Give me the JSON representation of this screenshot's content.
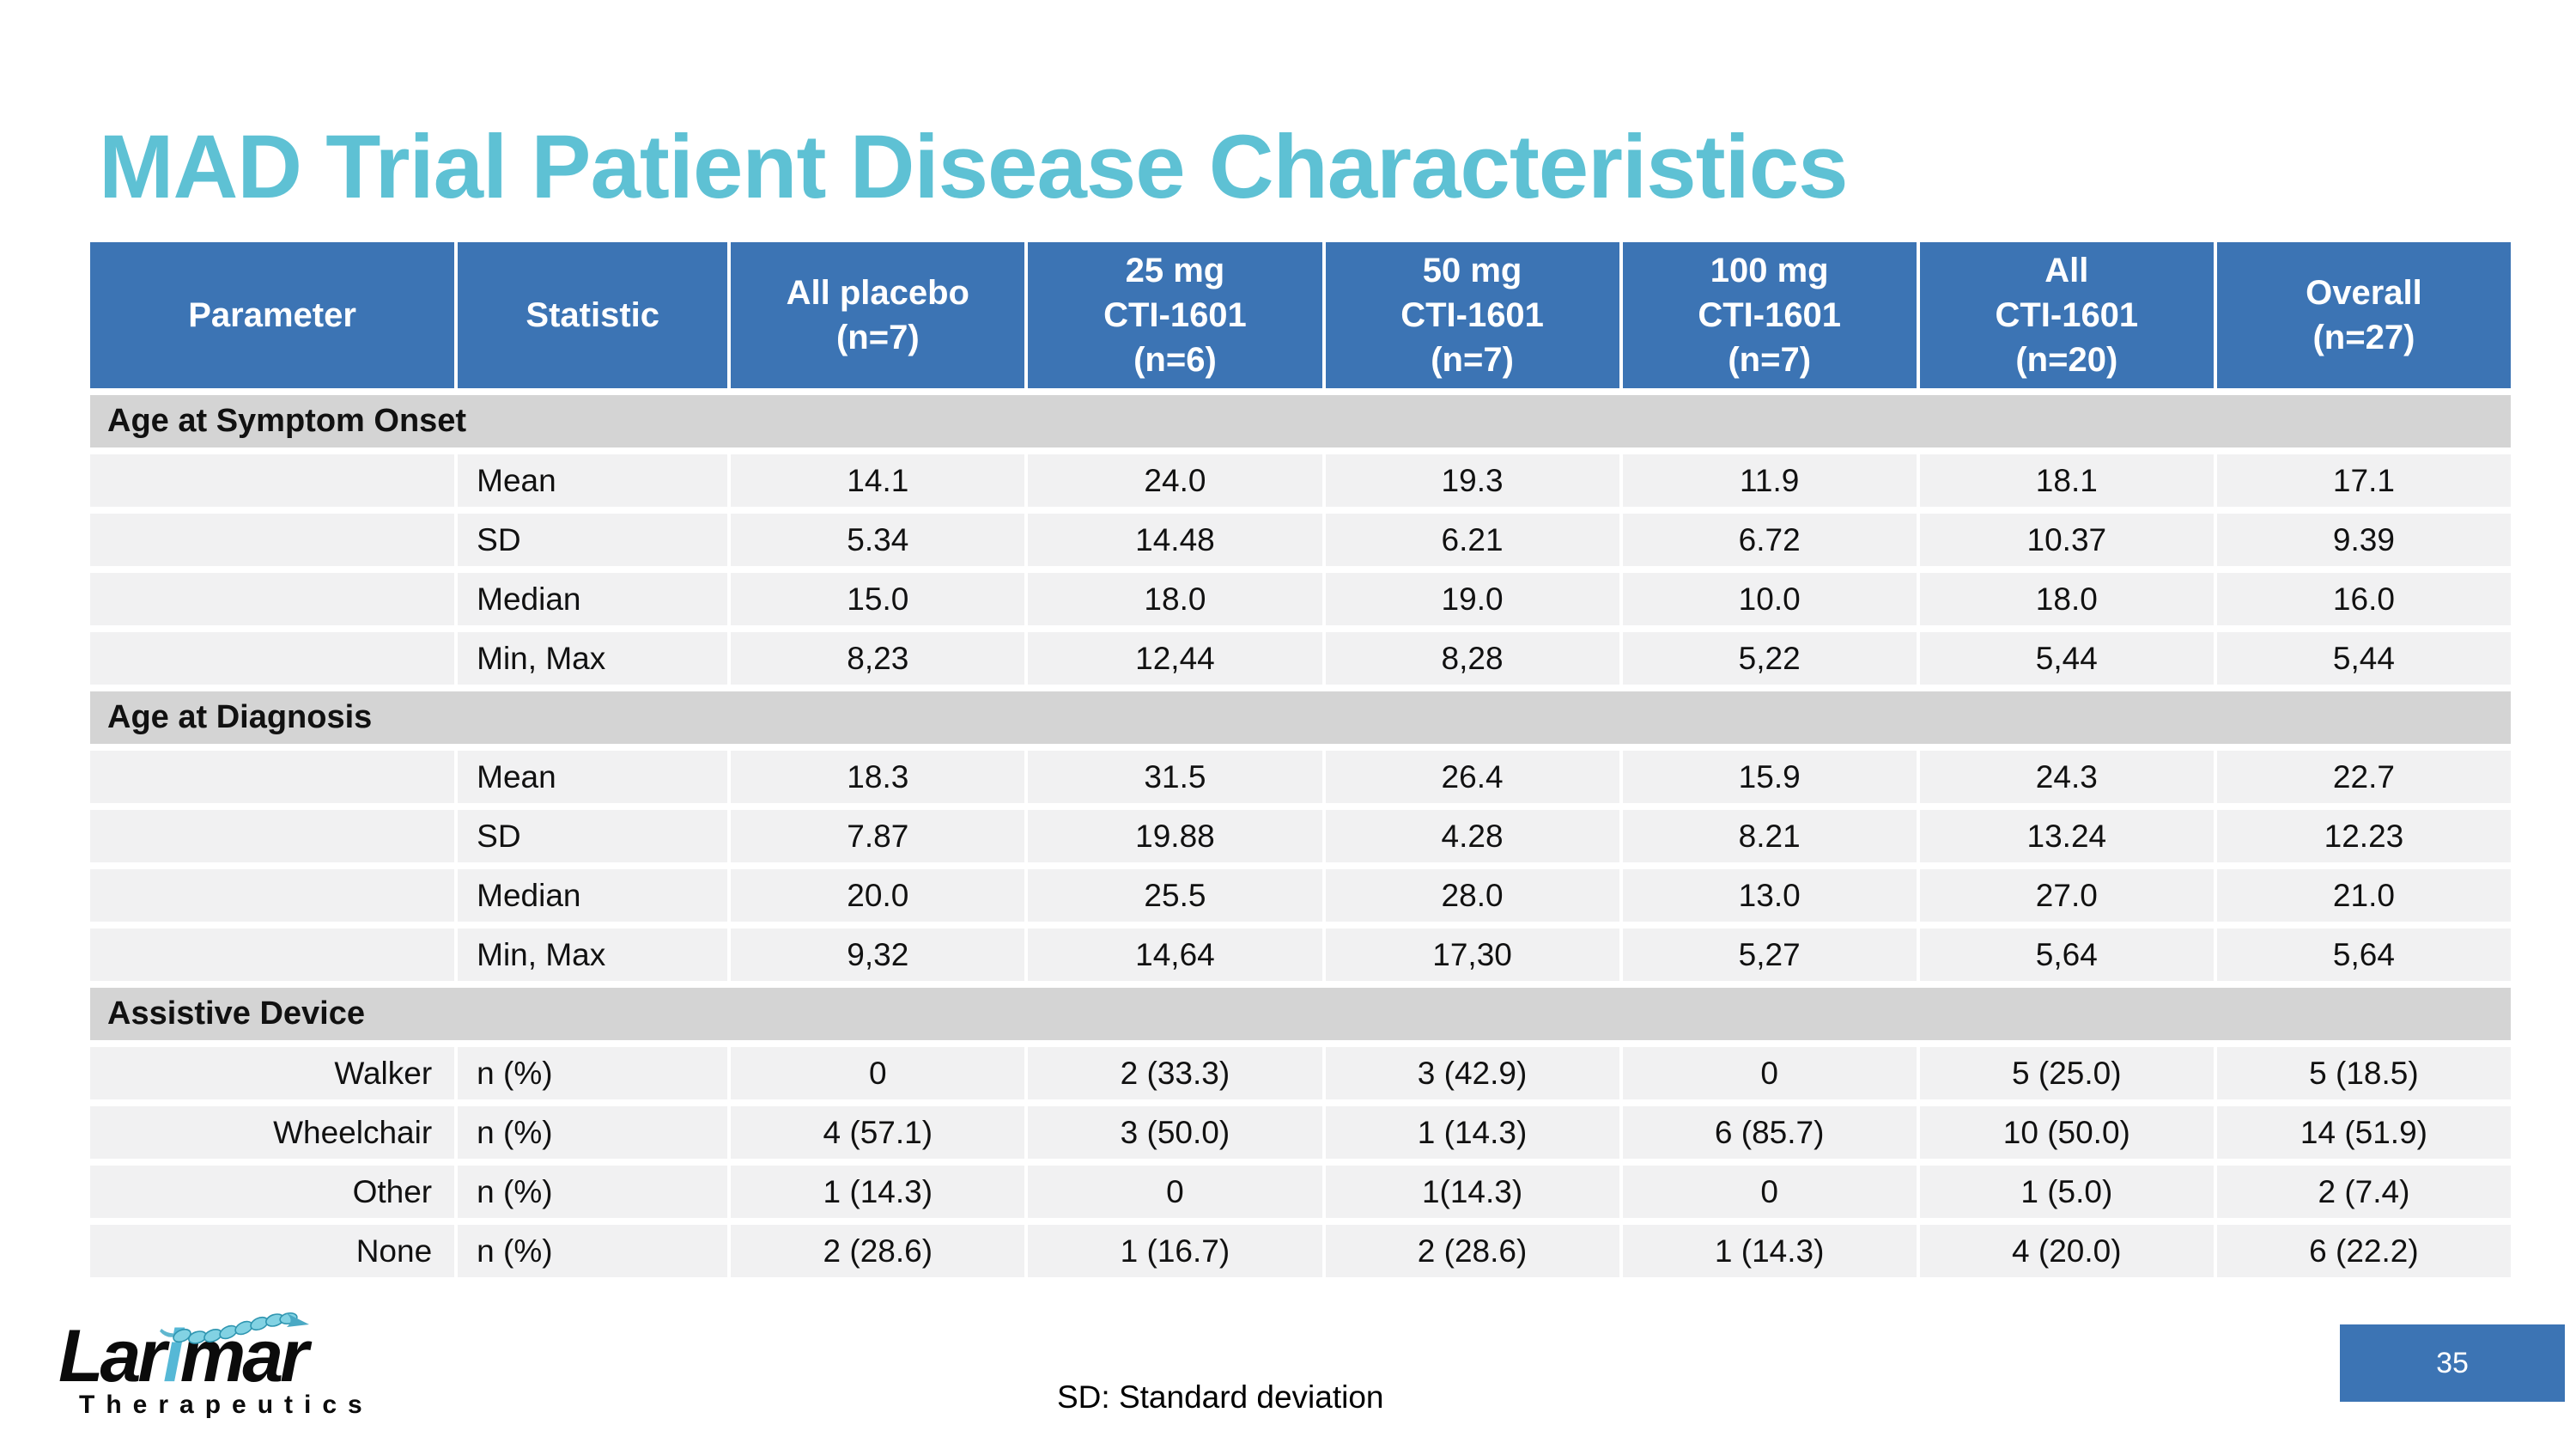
{
  "slide": {
    "title": "MAD Trial Patient Disease Characteristics",
    "footnote": "SD: Standard deviation",
    "page_number": "35"
  },
  "logo": {
    "name_prefix": "Lar",
    "name_accent": "i",
    "name_suffix": "mar",
    "subtitle": "Therapeutics"
  },
  "colors": {
    "header_blue": "#3C74B4",
    "title_teal": "#5EC1D4",
    "section_gray": "#D4D4D4",
    "row_gray": "#F1F1F2",
    "logo_blue": "#56B8D6"
  },
  "table": {
    "columns": [
      "Parameter",
      "Statistic",
      "All placebo\n(n=7)",
      "25 mg\nCTI-1601\n(n=6)",
      "50 mg\nCTI-1601\n(n=7)",
      "100 mg\nCTI-1601\n(n=7)",
      "All\nCTI-1601\n(n=20)",
      "Overall\n(n=27)"
    ],
    "rows": [
      {
        "type": "section",
        "label": "Age at Symptom Onset"
      },
      {
        "type": "data",
        "param": "",
        "stat": "Mean",
        "values": [
          "14.1",
          "24.0",
          "19.3",
          "11.9",
          "18.1",
          "17.1"
        ]
      },
      {
        "type": "data",
        "param": "",
        "stat": "SD",
        "values": [
          "5.34",
          "14.48",
          "6.21",
          "6.72",
          "10.37",
          "9.39"
        ]
      },
      {
        "type": "data",
        "param": "",
        "stat": "Median",
        "values": [
          "15.0",
          "18.0",
          "19.0",
          "10.0",
          "18.0",
          "16.0"
        ]
      },
      {
        "type": "data",
        "param": "",
        "stat": "Min, Max",
        "values": [
          "8,23",
          "12,44",
          "8,28",
          "5,22",
          "5,44",
          "5,44"
        ]
      },
      {
        "type": "section",
        "label": "Age at Diagnosis"
      },
      {
        "type": "data",
        "param": "",
        "stat": "Mean",
        "values": [
          "18.3",
          "31.5",
          "26.4",
          "15.9",
          "24.3",
          "22.7"
        ]
      },
      {
        "type": "data",
        "param": "",
        "stat": "SD",
        "values": [
          "7.87",
          "19.88",
          "4.28",
          "8.21",
          "13.24",
          "12.23"
        ]
      },
      {
        "type": "data",
        "param": "",
        "stat": "Median",
        "values": [
          "20.0",
          "25.5",
          "28.0",
          "13.0",
          "27.0",
          "21.0"
        ]
      },
      {
        "type": "data",
        "param": "",
        "stat": "Min, Max",
        "values": [
          "9,32",
          "14,64",
          "17,30",
          "5,27",
          "5,64",
          "5,64"
        ]
      },
      {
        "type": "section",
        "label": "Assistive Device"
      },
      {
        "type": "data",
        "param": "Walker",
        "stat": "n (%)",
        "values": [
          "0",
          "2 (33.3)",
          "3 (42.9)",
          "0",
          "5 (25.0)",
          "5 (18.5)"
        ]
      },
      {
        "type": "data",
        "param": "Wheelchair",
        "stat": "n (%)",
        "values": [
          "4 (57.1)",
          "3 (50.0)",
          "1 (14.3)",
          "6 (85.7)",
          "10 (50.0)",
          "14 (51.9)"
        ]
      },
      {
        "type": "data",
        "param": "Other",
        "stat": "n (%)",
        "values": [
          "1 (14.3)",
          "0",
          "1(14.3)",
          "0",
          "1 (5.0)",
          "2 (7.4)"
        ]
      },
      {
        "type": "data",
        "param": "None",
        "stat": "n (%)",
        "values": [
          "2 (28.6)",
          "1 (16.7)",
          "2 (28.6)",
          "1 (14.3)",
          "4 (20.0)",
          "6 (22.2)"
        ]
      }
    ]
  }
}
